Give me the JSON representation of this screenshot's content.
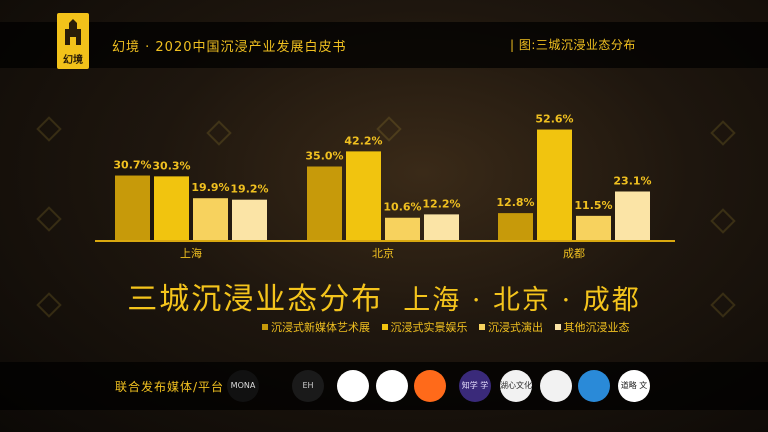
{
  "header": {
    "logo_text": "幻境",
    "doc_title": "幻境 · 2020中国沉浸产业发展白皮书",
    "figure_label": "| 图:三城沉浸业态分布"
  },
  "chart_data": {
    "type": "bar",
    "title": "三城沉浸业态分布",
    "subtitle": "上海 · 北京 · 成都",
    "categories": [
      "上海",
      "北京",
      "成都"
    ],
    "series": [
      {
        "name": "沉浸式新媒体艺术展",
        "values": [
          30.7,
          35.0,
          12.8
        ],
        "color": "#c79a0a"
      },
      {
        "name": "沉浸式实景娱乐",
        "values": [
          30.3,
          42.2,
          52.6
        ],
        "color": "#f1c40f"
      },
      {
        "name": "沉浸式演出",
        "values": [
          19.9,
          10.6,
          11.5
        ],
        "color": "#f7d25e"
      },
      {
        "name": "其他沉浸业态",
        "values": [
          19.2,
          12.2,
          23.1
        ],
        "color": "#fbe4a6"
      }
    ],
    "value_labels": [
      [
        "30.7%",
        "30.3%",
        "19.9%",
        "19.2%"
      ],
      [
        "35.0%",
        "42.2%",
        "10.6%",
        "12.2%"
      ],
      [
        "12.8%",
        "52.6%",
        "11.5%",
        "23.1%"
      ]
    ],
    "ylim": [
      0,
      60
    ],
    "grid": false,
    "legend": "bottom"
  },
  "footer": {
    "label": "联合发布媒体/平台",
    "partners": [
      {
        "name": "MONA",
        "bg": "#111111",
        "fg": "#dddddd"
      },
      {
        "name": "EH",
        "bg": "#1a1a1a",
        "fg": "#cccccc"
      },
      {
        "name": "",
        "bg": "#ffffff",
        "fg": "#222222"
      },
      {
        "name": "",
        "bg": "#ffffff",
        "fg": "#222222"
      },
      {
        "name": "",
        "bg": "#ff6a1a",
        "fg": "#ffffff"
      },
      {
        "name": "知学 学院",
        "bg": "#3a2a7a",
        "fg": "#e8e0ff"
      },
      {
        "name": "湖心文化",
        "bg": "#f2f2f2",
        "fg": "#2a2a2a"
      },
      {
        "name": "",
        "bg": "#f2f2f2",
        "fg": "#c8a020"
      },
      {
        "name": "",
        "bg": "#2a8ad8",
        "fg": "#ffffff"
      },
      {
        "name": "道略 文旅",
        "bg": "#ffffff",
        "fg": "#222222"
      }
    ]
  }
}
